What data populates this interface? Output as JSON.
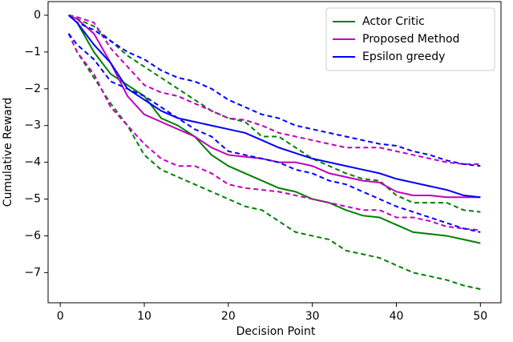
{
  "chart_data": {
    "type": "line",
    "xlabel": "Decision Point",
    "ylabel": "Cumulative Reward",
    "x": [
      1,
      2,
      4,
      6,
      8,
      10,
      12,
      14,
      16,
      18,
      20,
      22,
      24,
      26,
      28,
      30,
      32,
      34,
      36,
      38,
      40,
      42,
      44,
      46,
      48,
      50
    ],
    "series": [
      {
        "name": "Actor Critic",
        "color": "#008000",
        "values": [
          0,
          -0.2,
          -1.0,
          -1.6,
          -1.9,
          -2.2,
          -2.8,
          -3.0,
          -3.3,
          -3.8,
          -4.1,
          -4.3,
          -4.5,
          -4.7,
          -4.8,
          -5.0,
          -5.1,
          -5.3,
          -5.45,
          -5.5,
          -5.7,
          -5.9,
          -5.95,
          -6.0,
          -6.1,
          -6.2
        ],
        "upper": [
          0,
          -0.1,
          -0.3,
          -0.7,
          -1.1,
          -1.4,
          -1.7,
          -2.0,
          -2.3,
          -2.6,
          -2.8,
          -2.9,
          -3.3,
          -3.3,
          -3.6,
          -3.9,
          -4.1,
          -4.3,
          -4.45,
          -4.5,
          -4.9,
          -5.1,
          -5.1,
          -5.1,
          -5.3,
          -5.35
        ],
        "lower": [
          -0.5,
          -1.0,
          -1.7,
          -2.4,
          -3.0,
          -3.8,
          -4.2,
          -4.4,
          -4.6,
          -4.8,
          -5.0,
          -5.2,
          -5.3,
          -5.6,
          -5.9,
          -6.0,
          -6.1,
          -6.4,
          -6.5,
          -6.6,
          -6.8,
          -7.0,
          -7.1,
          -7.2,
          -7.35,
          -7.45
        ]
      },
      {
        "name": "Proposed Method",
        "color": "#bf00bf",
        "values": [
          0,
          -0.1,
          -0.5,
          -1.3,
          -2.2,
          -2.7,
          -2.9,
          -3.1,
          -3.3,
          -3.6,
          -3.8,
          -3.85,
          -3.9,
          -4.0,
          -4.0,
          -4.1,
          -4.3,
          -4.4,
          -4.5,
          -4.55,
          -4.8,
          -4.9,
          -4.9,
          -4.95,
          -4.95,
          -4.95
        ],
        "upper": [
          0,
          -0.05,
          -0.2,
          -0.9,
          -1.4,
          -1.9,
          -2.1,
          -2.2,
          -2.4,
          -2.6,
          -2.8,
          -2.85,
          -3.0,
          -3.2,
          -3.3,
          -3.4,
          -3.5,
          -3.6,
          -3.6,
          -3.6,
          -3.7,
          -3.8,
          -3.9,
          -4.0,
          -4.05,
          -4.05
        ],
        "lower": [
          -0.5,
          -1.0,
          -1.6,
          -2.5,
          -3.0,
          -3.5,
          -3.9,
          -4.1,
          -4.1,
          -4.3,
          -4.6,
          -4.7,
          -4.75,
          -4.8,
          -4.9,
          -5.0,
          -5.1,
          -5.2,
          -5.3,
          -5.3,
          -5.5,
          -5.5,
          -5.6,
          -5.75,
          -5.8,
          -5.85
        ]
      },
      {
        "name": "Epsilon greedy",
        "color": "#0000ff",
        "values": [
          0,
          -0.2,
          -0.8,
          -1.3,
          -2.0,
          -2.3,
          -2.6,
          -2.8,
          -2.9,
          -3.0,
          -3.1,
          -3.2,
          -3.4,
          -3.6,
          -3.75,
          -3.9,
          -4.0,
          -4.1,
          -4.2,
          -4.3,
          -4.45,
          -4.55,
          -4.65,
          -4.75,
          -4.9,
          -4.95
        ],
        "upper": [
          0,
          -0.2,
          -0.4,
          -0.7,
          -1.0,
          -1.2,
          -1.5,
          -1.7,
          -1.8,
          -2.0,
          -2.3,
          -2.5,
          -2.7,
          -2.8,
          -3.0,
          -3.1,
          -3.2,
          -3.3,
          -3.4,
          -3.5,
          -3.55,
          -3.7,
          -3.8,
          -3.95,
          -4.05,
          -4.1
        ],
        "lower": [
          -0.5,
          -0.8,
          -1.2,
          -1.8,
          -2.0,
          -2.2,
          -2.5,
          -2.8,
          -3.1,
          -3.3,
          -3.7,
          -3.8,
          -3.9,
          -4.0,
          -4.2,
          -4.3,
          -4.5,
          -4.6,
          -4.8,
          -5.0,
          -5.2,
          -5.35,
          -5.5,
          -5.65,
          -5.8,
          -5.9
        ]
      }
    ],
    "xlim": [
      -1.45,
      52.45
    ],
    "ylim": [
      -7.82,
      0.37
    ],
    "xticks": [
      0,
      10,
      20,
      30,
      40,
      50
    ],
    "yticks": [
      0,
      {
        "value": -1,
        "label": "−1"
      },
      {
        "value": -2,
        "label": "−2"
      },
      {
        "value": -3,
        "label": "−3"
      },
      {
        "value": -4,
        "label": "−4"
      },
      {
        "value": -5,
        "label": "−5"
      },
      {
        "value": -6,
        "label": "−6"
      },
      {
        "value": -7,
        "label": "−7"
      }
    ],
    "legend": "upper right"
  }
}
